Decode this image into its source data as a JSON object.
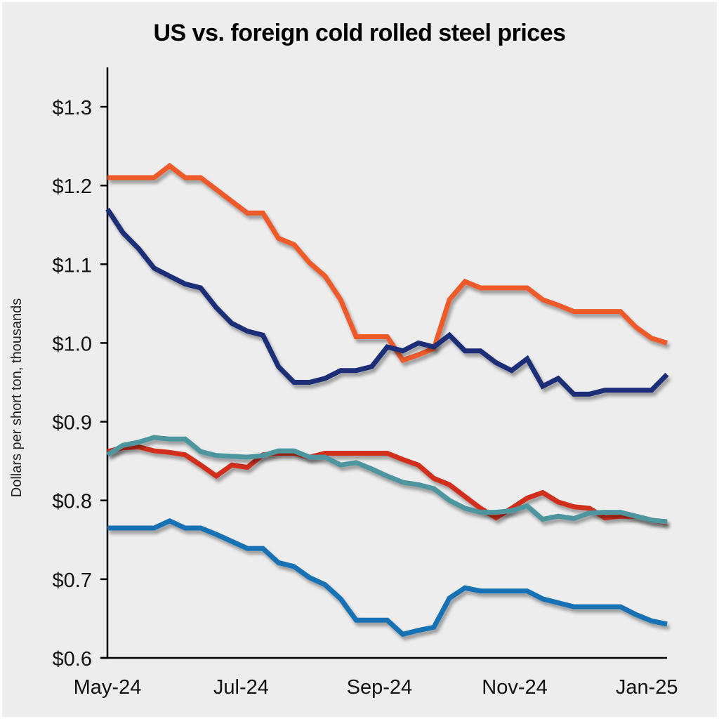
{
  "chart_data": {
    "type": "line",
    "title": "US vs. foreign cold rolled steel prices",
    "xlabel": "",
    "ylabel": "Dollars per short ton, thousands",
    "ylim": [
      0.6,
      1.35
    ],
    "yticks": [
      0.6,
      0.7,
      0.8,
      0.9,
      1.0,
      1.1,
      1.2,
      1.3
    ],
    "ytick_labels": [
      "$0.6",
      "$0.7",
      "$0.8",
      "$0.9",
      "$1.0",
      "$1.1",
      "$1.2",
      "$1.3"
    ],
    "x_points": 37,
    "x_unit": "weekly observations, May-24 to Jan-25",
    "xtick_labels": [
      {
        "label": "May-24",
        "index": 0
      },
      {
        "label": "Jul-24",
        "index": 8.6
      },
      {
        "label": "Sep-24",
        "index": 17.5
      },
      {
        "label": "Nov-24",
        "index": 26.2
      },
      {
        "label": "Jan-25",
        "index": 34.7
      }
    ],
    "grid": false,
    "legend": "none",
    "series": [
      {
        "name": "orange-series",
        "color": "#EF5A2A",
        "values": [
          1.21,
          1.21,
          1.21,
          1.21,
          1.225,
          1.21,
          1.21,
          1.195,
          1.18,
          1.165,
          1.165,
          1.133,
          1.125,
          1.102,
          1.085,
          1.055,
          1.008,
          1.008,
          1.008,
          0.978,
          0.985,
          0.993,
          1.055,
          1.078,
          1.07,
          1.07,
          1.07,
          1.07,
          1.055,
          1.048,
          1.04,
          1.04,
          1.04,
          1.04,
          1.02,
          1.006,
          1.0
        ]
      },
      {
        "name": "navy-series",
        "color": "#1F2F78",
        "values": [
          1.17,
          1.14,
          1.12,
          1.095,
          1.085,
          1.075,
          1.07,
          1.045,
          1.025,
          1.015,
          1.01,
          0.97,
          0.95,
          0.95,
          0.955,
          0.965,
          0.965,
          0.97,
          0.995,
          0.99,
          1.0,
          0.995,
          1.01,
          0.99,
          0.99,
          0.975,
          0.965,
          0.98,
          0.945,
          0.955,
          0.935,
          0.935,
          0.94,
          0.94,
          0.94,
          0.94,
          0.96
        ]
      },
      {
        "name": "red-series",
        "color": "#D12E1F",
        "values": [
          0.862,
          0.867,
          0.868,
          0.863,
          0.861,
          0.858,
          0.845,
          0.831,
          0.845,
          0.842,
          0.858,
          0.86,
          0.86,
          0.855,
          0.86,
          0.86,
          0.86,
          0.86,
          0.86,
          0.852,
          0.845,
          0.828,
          0.82,
          0.805,
          0.79,
          0.778,
          0.79,
          0.803,
          0.81,
          0.798,
          0.792,
          0.79,
          0.778,
          0.78,
          0.78,
          0.775,
          0.772
        ]
      },
      {
        "name": "teal-series",
        "color": "#4E96A0",
        "values": [
          0.858,
          0.87,
          0.874,
          0.88,
          0.878,
          0.878,
          0.862,
          0.857,
          0.856,
          0.855,
          0.857,
          0.863,
          0.863,
          0.855,
          0.855,
          0.845,
          0.848,
          0.84,
          0.831,
          0.823,
          0.82,
          0.815,
          0.8,
          0.79,
          0.785,
          0.785,
          0.787,
          0.793,
          0.776,
          0.78,
          0.777,
          0.784,
          0.785,
          0.785,
          0.78,
          0.775,
          0.773
        ]
      },
      {
        "name": "blue-series",
        "color": "#1271B5",
        "values": [
          0.765,
          0.765,
          0.765,
          0.765,
          0.774,
          0.765,
          0.765,
          0.757,
          0.748,
          0.739,
          0.739,
          0.721,
          0.716,
          0.702,
          0.693,
          0.675,
          0.648,
          0.648,
          0.648,
          0.63,
          0.635,
          0.639,
          0.676,
          0.689,
          0.685,
          0.685,
          0.685,
          0.685,
          0.675,
          0.67,
          0.665,
          0.665,
          0.665,
          0.665,
          0.655,
          0.647,
          0.643
        ]
      }
    ]
  }
}
